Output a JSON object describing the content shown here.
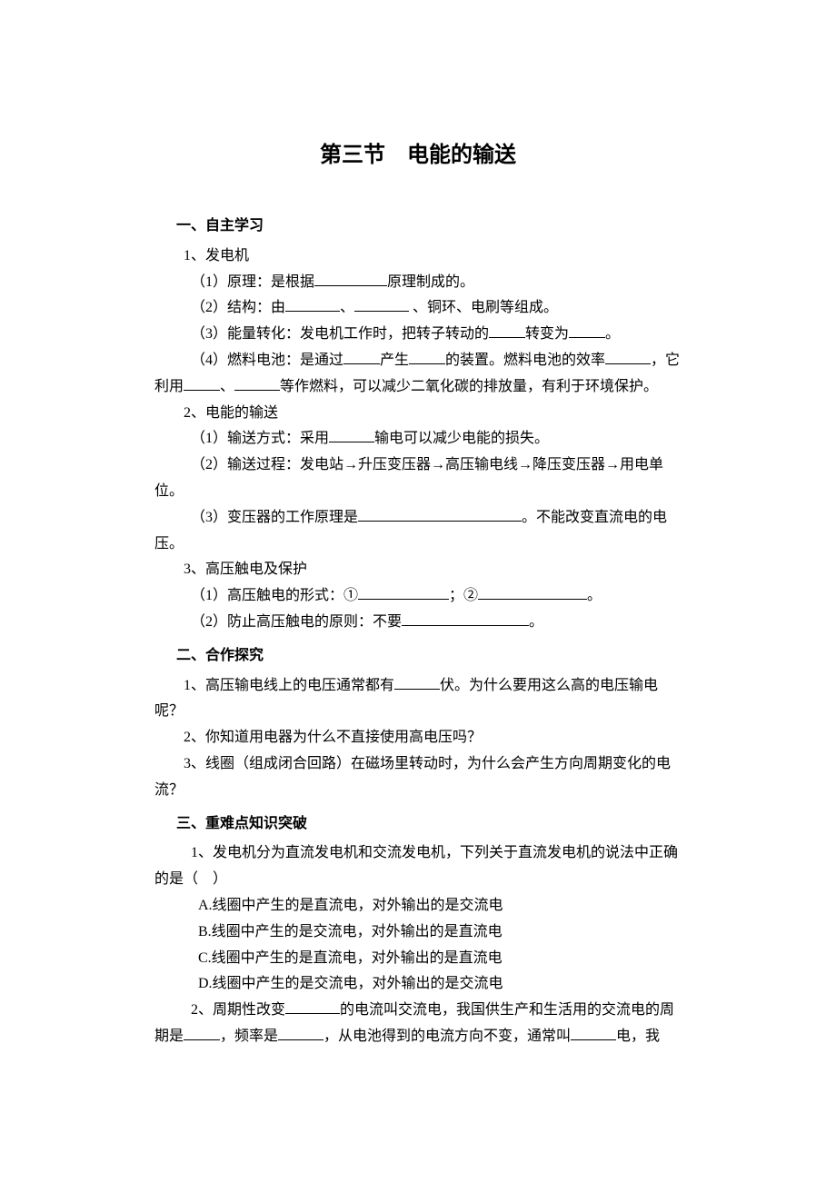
{
  "title": "第三节 电能的输送",
  "s1": {
    "header": "一、自主学习",
    "p1": "1、发电机",
    "p1_1a": "（1）原理：是根据",
    "p1_1b": "原理制成的。",
    "p1_2a": "（2）结构：由",
    "p1_2b": "、",
    "p1_2c": " 、铜环、电刷等组成。",
    "p1_3a": "（3）能量转化：发电机工作时，把转子转动的",
    "p1_3b": "转变为",
    "p1_3c": "。",
    "p1_4a": "（4）燃料电池：是通过",
    "p1_4b": "产生",
    "p1_4c": "的装置。燃料电池的效率",
    "p1_4d": "，它利用",
    "p1_4e": "、",
    "p1_4f": "等作燃料，可以减少二氧化碳的排放量，有利于环境保护。",
    "p2": "2、电能的输送",
    "p2_1a": "（1）输送方式：采用",
    "p2_1b": "输电可以减少电能的损失。",
    "p2_2": "（2）输送过程：发电站→升压变压器→高压输电线→降压变压器→用电单位。",
    "p2_3a": "（3）变压器的工作原理是",
    "p2_3b": "。不能改变直流电的电压。",
    "p3": "3、高压触电及保护",
    "p3_1a": "（1）高压触电的形式：①",
    "p3_1b": "；②",
    "p3_1c": "。",
    "p3_2a": "（2）防止高压触电的原则：不要",
    "p3_2b": "。"
  },
  "s2": {
    "header": "二、合作探究",
    "q1a": "1、高压输电线上的电压通常都有",
    "q1b": "伏。为什么要用这么高的电压输电呢？",
    "q2": "2、你知道用电器为什么不直接使用高电压吗？",
    "q3": "3、线圈（组成闭合回路）在磁场里转动时，为什么会产生方向周期变化的电流？"
  },
  "s3": {
    "header": "三、重难点知识突破",
    "q1": "1、发电机分为直流发电机和交流发电机，下列关于直流发电机的说法中正确的是（ ）",
    "q1a": "A.线圈中产生的是直流电，对外输出的是交流电",
    "q1b": "B.线圈中产生的是交流电，对外输出的是直流电",
    "q1c": "C.线圈中产生的是直流电，对外输出的是直流电",
    "q1d": "D.线圈中产生的是交流电，对外输出的是交流电",
    "q2a": "2、周期性改变",
    "q2b": "的电流叫交流电，我国供生产和生活用的交流电的周期是",
    "q2c": "，频率是",
    "q2d": "，从电池得到的电流方向不变，通常叫",
    "q2e": "电，我"
  },
  "style": {
    "background_color": "#ffffff",
    "text_color": "#000000",
    "font_family": "SimSun",
    "title_fontsize": 24,
    "body_fontsize": 16,
    "line_height": 1.8
  }
}
